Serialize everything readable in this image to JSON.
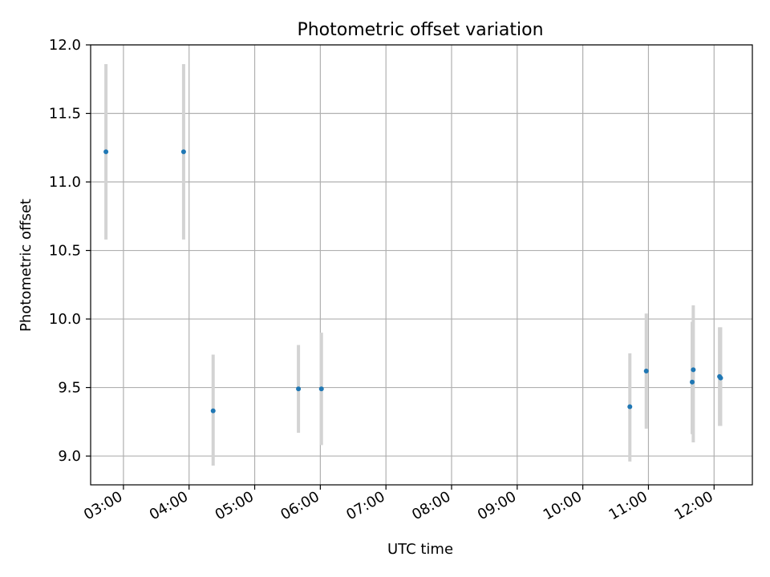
{
  "chart_data": {
    "type": "scatter",
    "title": "Photometric offset variation",
    "xlabel": "UTC time",
    "ylabel": "Photometric offset",
    "x_axis_type": "time",
    "x_ticks": [
      "03:00",
      "04:00",
      "05:00",
      "06:00",
      "07:00",
      "08:00",
      "09:00",
      "10:00",
      "11:00",
      "12:00"
    ],
    "xlim": [
      "02:30",
      "12:35"
    ],
    "ylim": [
      8.79,
      12.0
    ],
    "y_ticks": [
      9.0,
      9.5,
      10.0,
      10.5,
      11.0,
      11.5,
      12.0
    ],
    "grid": true,
    "legend": false,
    "colors": {
      "marker": "#1f77b4",
      "errorbar": "#d3d3d3",
      "grid": "#b0b0b0"
    },
    "points": [
      {
        "x": "02:44",
        "y": 11.22,
        "yerr": [
          10.58,
          11.86
        ]
      },
      {
        "x": "03:55",
        "y": 11.22,
        "yerr": [
          10.58,
          11.86
        ]
      },
      {
        "x": "04:22",
        "y": 9.33,
        "yerr": [
          8.93,
          9.74
        ]
      },
      {
        "x": "05:40",
        "y": 9.49,
        "yerr": [
          9.17,
          9.81
        ]
      },
      {
        "x": "06:01",
        "y": 9.49,
        "yerr": [
          9.08,
          9.9
        ]
      },
      {
        "x": "10:43",
        "y": 9.36,
        "yerr": [
          8.96,
          9.75
        ]
      },
      {
        "x": "10:58",
        "y": 9.62,
        "yerr": [
          9.2,
          10.04
        ]
      },
      {
        "x": "11:40",
        "y": 9.54,
        "yerr": [
          9.16,
          9.98
        ]
      },
      {
        "x": "11:41",
        "y": 9.63,
        "yerr": [
          9.1,
          10.1
        ]
      },
      {
        "x": "12:05",
        "y": 9.58,
        "yerr": [
          9.22,
          9.94
        ]
      },
      {
        "x": "12:06",
        "y": 9.57,
        "yerr": [
          9.22,
          9.94
        ]
      }
    ]
  }
}
